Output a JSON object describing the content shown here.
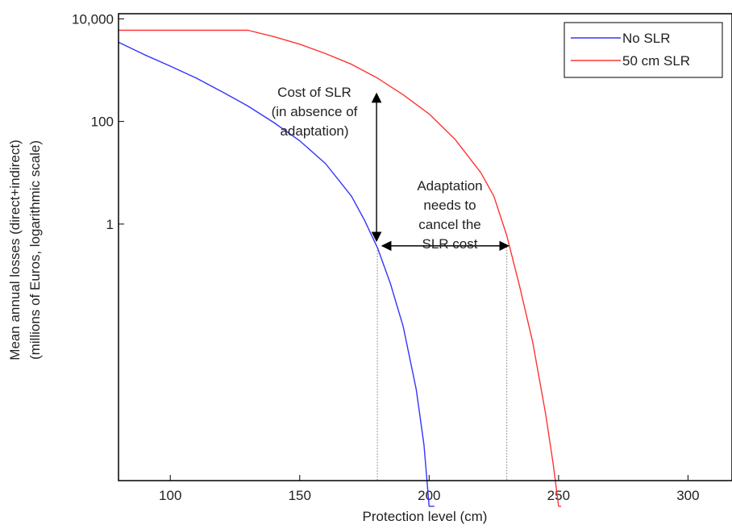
{
  "chart_data": {
    "type": "line",
    "xlabel": "Protection level (cm)",
    "ylabel_line1": "Mean annual losses (direct+indirect)",
    "ylabel_line2": "(millions of Euros, logarithmic scale)",
    "xlim": [
      80,
      317
    ],
    "ylim_log10": [
      -5,
      4.1
    ],
    "y_scale": "log",
    "grid": false,
    "legend_position": "top-right",
    "x_ticks": [
      {
        "value": 100,
        "label": "100"
      },
      {
        "value": 150,
        "label": "150"
      },
      {
        "value": 200,
        "label": "200"
      },
      {
        "value": 250,
        "label": "250"
      },
      {
        "value": 300,
        "label": "300"
      }
    ],
    "y_ticks": [
      {
        "value": 10000,
        "label": "10,000"
      },
      {
        "value": 100,
        "label": "100"
      },
      {
        "value": 1,
        "label": "1"
      }
    ],
    "series": [
      {
        "name": "No SLR",
        "color": "#3333ff",
        "x": [
          80,
          90,
          100,
          110,
          120,
          130,
          140,
          150,
          160,
          170,
          175,
          180,
          185,
          190,
          195,
          198,
          200,
          201,
          202
        ],
        "y": [
          3500,
          2000,
          1200,
          700,
          380,
          200,
          95,
          42,
          15,
          3.5,
          1.2,
          0.35,
          0.07,
          0.01,
          0.0006,
          5e-05,
          3e-06,
          2e-07,
          1e-08
        ]
      },
      {
        "name": "50 cm SLR",
        "color": "#ff3333",
        "x": [
          80,
          130,
          140,
          150,
          160,
          170,
          180,
          190,
          200,
          210,
          220,
          225,
          230,
          235,
          240,
          245,
          248,
          250,
          251
        ],
        "y": [
          6000,
          6000,
          4500,
          3200,
          2100,
          1300,
          700,
          330,
          140,
          45,
          10,
          3.5,
          0.6,
          0.06,
          0.005,
          0.0002,
          2e-05,
          1e-06,
          1e-08
        ]
      }
    ],
    "markers": [
      {
        "x": 180,
        "y_top": 350,
        "y_bottom": 0.35
      },
      {
        "x_left": 180,
        "x_right": 230,
        "y": 0.35
      }
    ],
    "annotations": [
      {
        "lines": [
          "Cost of SLR",
          "(in absence of",
          "adaptation)"
        ]
      },
      {
        "lines": [
          "Adaptation",
          "needs to",
          "cancel the",
          "SLR cost"
        ]
      }
    ]
  }
}
